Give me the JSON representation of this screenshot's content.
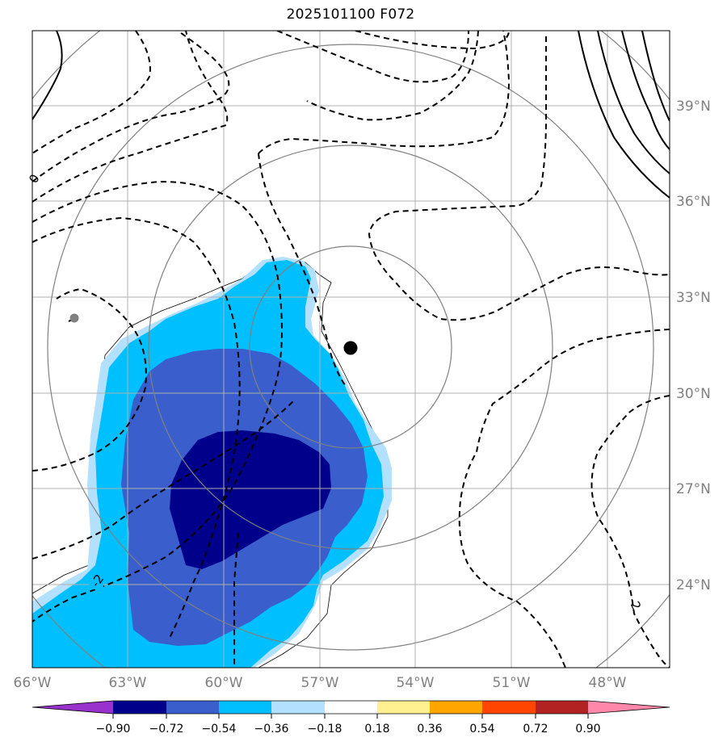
{
  "map": {
    "title": "2025101100 F072",
    "lat_labels": [
      "39°N",
      "36°N",
      "33°N",
      "30°N",
      "27°N",
      "24°N"
    ],
    "lon_labels": [
      "66°W",
      "63°W",
      "60°W",
      "57°W",
      "54°W",
      "51°W",
      "48°W"
    ],
    "contour_labels": [
      "-2",
      "-2",
      "0"
    ],
    "colors": {
      "border": "#000000",
      "gridline": "#b0b0b0",
      "range_ring": "#808080",
      "shade_levels": [
        "#9932cc",
        "#00008b",
        "#3a5fcd",
        "#00bfff",
        "#b3e0ff",
        "#ffffff",
        "#fff18f",
        "#ffa500",
        "#ff4500",
        "#b22222",
        "#ff88aa"
      ],
      "storm_center": "#000000",
      "secondary_marker": "#808080"
    }
  },
  "colorbar": {
    "tick_labels": [
      "−0.90",
      "−0.72",
      "−0.54",
      "−0.36",
      "−0.18",
      "0.18",
      "0.36",
      "0.54",
      "0.72",
      "0.90"
    ]
  }
}
